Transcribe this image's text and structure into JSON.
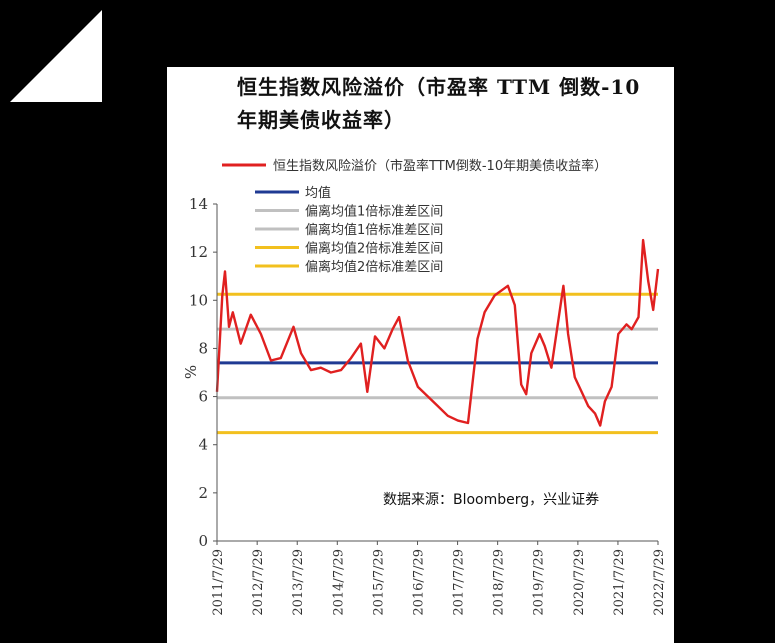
{
  "chart_data": {
    "type": "line",
    "title": "恒生指数风险溢价（市盈率 TTM 倒数-10 年期美债收益率）",
    "ylabel": "%",
    "ylim": [
      0,
      14
    ],
    "yticks": [
      0,
      2,
      4,
      6,
      8,
      10,
      12,
      14
    ],
    "x_labels": [
      "2011/7/29",
      "2012/7/29",
      "2013/7/29",
      "2014/7/29",
      "2015/7/29",
      "2016/7/29",
      "2017/7/29",
      "2018/7/29",
      "2019/7/29",
      "2020/7/29",
      "2021/7/29",
      "2022/7/29"
    ],
    "source": "数据来源：Bloomberg，兴业证券",
    "legend_position": "top-left",
    "series": [
      {
        "name": "恒生指数风险溢价（市盈率TTM倒数-10年期美债收益率）",
        "color": "#e02020",
        "points": [
          [
            "2011/7/29",
            6.2
          ],
          [
            "2011/9/15",
            10.2
          ],
          [
            "2011/10/10",
            11.2
          ],
          [
            "2011/11/15",
            8.9
          ],
          [
            "2011/12/20",
            9.5
          ],
          [
            "2012/3/1",
            8.2
          ],
          [
            "2012/6/1",
            9.4
          ],
          [
            "2012/9/1",
            8.6
          ],
          [
            "2012/12/1",
            7.5
          ],
          [
            "2013/3/1",
            7.6
          ],
          [
            "2013/6/25",
            8.9
          ],
          [
            "2013/9/1",
            7.8
          ],
          [
            "2013/12/1",
            7.1
          ],
          [
            "2014/3/1",
            7.2
          ],
          [
            "2014/6/1",
            7.0
          ],
          [
            "2014/9/1",
            7.1
          ],
          [
            "2014/12/1",
            7.6
          ],
          [
            "2015/3/1",
            8.2
          ],
          [
            "2015/4/28",
            6.2
          ],
          [
            "2015/7/8",
            8.5
          ],
          [
            "2015/10/1",
            8.0
          ],
          [
            "2015/12/15",
            8.8
          ],
          [
            "2016/2/12",
            9.3
          ],
          [
            "2016/5/1",
            7.5
          ],
          [
            "2016/8/1",
            6.4
          ],
          [
            "2016/11/1",
            6.0
          ],
          [
            "2017/2/1",
            5.6
          ],
          [
            "2017/5/1",
            5.2
          ],
          [
            "2017/8/1",
            5.0
          ],
          [
            "2017/11/1",
            4.9
          ],
          [
            "2018/1/26",
            8.4
          ],
          [
            "2018/4/1",
            9.5
          ],
          [
            "2018/7/1",
            10.2
          ],
          [
            "2018/10/30",
            10.6
          ],
          [
            "2019/1/1",
            9.8
          ],
          [
            "2019/3/1",
            6.5
          ],
          [
            "2019/4/15",
            6.1
          ],
          [
            "2019/6/1",
            7.8
          ],
          [
            "2019/8/15",
            8.6
          ],
          [
            "2019/10/1",
            8.1
          ],
          [
            "2019/12/1",
            7.2
          ],
          [
            "2020/3/19",
            10.6
          ],
          [
            "2020/5/1",
            8.6
          ],
          [
            "2020/7/1",
            6.8
          ],
          [
            "2020/9/1",
            6.2
          ],
          [
            "2020/11/1",
            5.6
          ],
          [
            "2021/1/1",
            5.3
          ],
          [
            "2021/2/17",
            4.8
          ],
          [
            "2021/4/1",
            5.8
          ],
          [
            "2021/6/1",
            6.4
          ],
          [
            "2021/8/1",
            8.6
          ],
          [
            "2021/10/15",
            9.0
          ],
          [
            "2021/12/1",
            8.8
          ],
          [
            "2022/2/1",
            9.3
          ],
          [
            "2022/3/15",
            12.5
          ],
          [
            "2022/5/1",
            10.8
          ],
          [
            "2022/6/15",
            9.6
          ],
          [
            "2022/7/29",
            11.3
          ]
        ]
      }
    ],
    "reference_lines": [
      {
        "name": "均值",
        "value": 7.4,
        "color": "#1f3a93"
      },
      {
        "name": "偏离均值1倍标准差区间",
        "value": 8.8,
        "color": "#c0c0c0"
      },
      {
        "name": "偏离均值1倍标准差区间",
        "value": 5.95,
        "color": "#c0c0c0"
      },
      {
        "name": "偏离均值2倍标准差区间",
        "value": 10.25,
        "color": "#f2c01e"
      },
      {
        "name": "偏离均值2倍标准差区间",
        "value": 4.5,
        "color": "#f2c01e"
      }
    ]
  }
}
